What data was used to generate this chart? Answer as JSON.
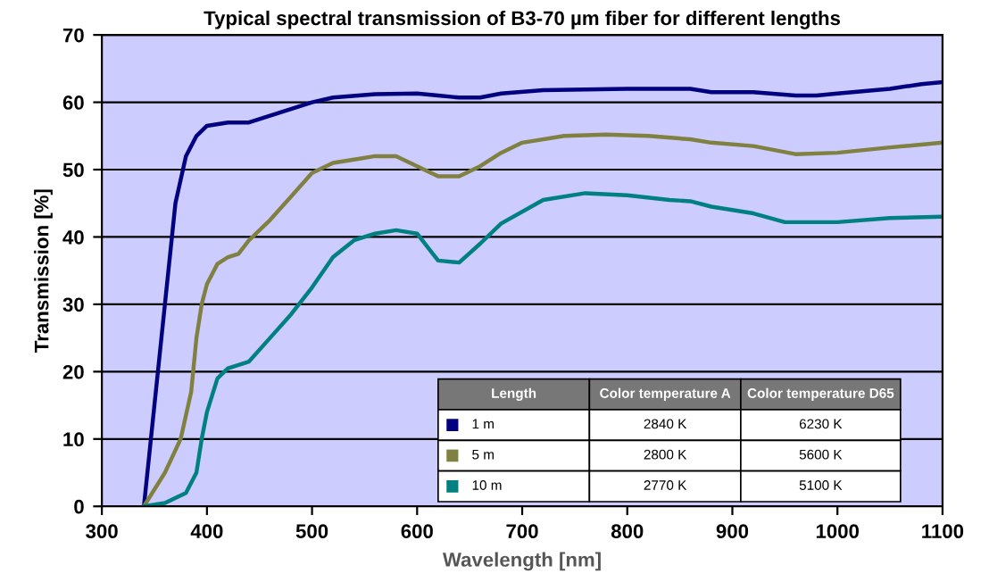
{
  "chart_data": {
    "type": "line",
    "title": "Typical spectral transmission of B3-70 µm fiber for different lengths",
    "xlabel": "Wavelength [nm]",
    "ylabel": "Transmission [%]",
    "xlim": [
      300,
      1100
    ],
    "xticks": [
      300,
      400,
      500,
      600,
      700,
      800,
      900,
      1000,
      1100
    ],
    "ylim": [
      0,
      70
    ],
    "yticks": [
      0,
      10,
      20,
      30,
      40,
      50,
      60,
      70
    ],
    "grid": "y",
    "legend": "bottom",
    "legend_title": "Length",
    "marker": "none",
    "line_style": "solid",
    "annotations": [
      "Color temperature A",
      "Color temperature D65",
      "2840 K",
      "6230 K",
      "2800 K",
      "5600 K",
      "2770 K",
      "5100 K"
    ],
    "series": [
      {
        "name": "1 m",
        "color": "#000080",
        "x": [
          340,
          370,
          380,
          390,
          400,
          420,
          440,
          460,
          480,
          500,
          520,
          560,
          600,
          620,
          640,
          660,
          680,
          720,
          800,
          860,
          880,
          920,
          960,
          980,
          1000,
          1050,
          1080,
          1100
        ],
        "values": [
          0,
          45,
          52,
          55,
          56.5,
          57,
          57,
          58,
          59,
          60,
          60.7,
          61.2,
          61.3,
          61,
          60.7,
          60.7,
          61.3,
          61.8,
          62,
          62,
          61.5,
          61.5,
          61,
          61,
          61.3,
          62,
          62.7,
          63
        ]
      },
      {
        "name": "5 m",
        "color": "#808040",
        "x": [
          340,
          360,
          375,
          385,
          390,
          395,
          400,
          410,
          420,
          430,
          440,
          460,
          480,
          500,
          520,
          540,
          560,
          580,
          600,
          620,
          640,
          660,
          680,
          700,
          740,
          780,
          820,
          860,
          880,
          920,
          960,
          1000,
          1050,
          1100
        ],
        "values": [
          0,
          5,
          10,
          17,
          25,
          30,
          33,
          36,
          37,
          37.5,
          39.5,
          42.5,
          46,
          49.5,
          51,
          51.5,
          52,
          52,
          50.5,
          49,
          49,
          50.5,
          52.5,
          54,
          55,
          55.2,
          55,
          54.5,
          54,
          53.5,
          52.3,
          52.5,
          53.3,
          54
        ]
      },
      {
        "name": "10 m",
        "color": "#008080",
        "x": [
          340,
          360,
          380,
          390,
          395,
          400,
          410,
          420,
          440,
          460,
          480,
          500,
          520,
          540,
          560,
          580,
          600,
          610,
          620,
          640,
          660,
          680,
          720,
          760,
          800,
          840,
          860,
          880,
          920,
          950,
          1000,
          1050,
          1100
        ],
        "values": [
          0,
          0.5,
          2,
          5,
          10,
          14,
          19,
          20.5,
          21.5,
          25,
          28.5,
          32.5,
          37,
          39.5,
          40.5,
          41,
          40.5,
          38.5,
          36.5,
          36.2,
          39,
          42,
          45.5,
          46.5,
          46.2,
          45.5,
          45.3,
          44.5,
          43.5,
          42.2,
          42.2,
          42.8,
          43
        ]
      }
    ]
  }
}
